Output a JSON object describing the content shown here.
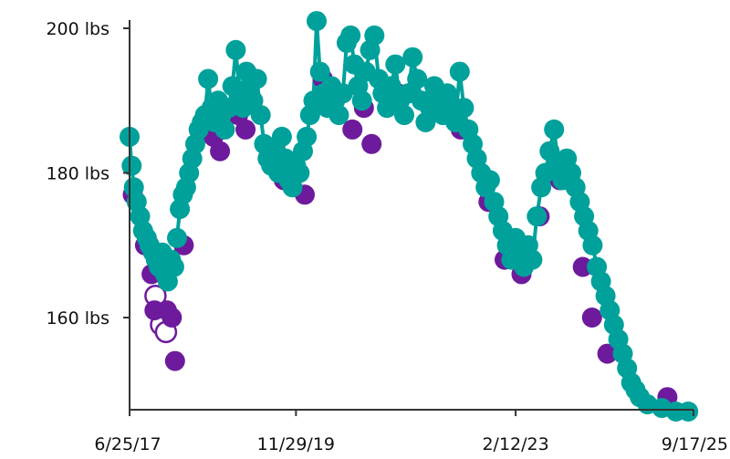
{
  "chart_data": {
    "type": "scatter",
    "title": "",
    "xlabel": "",
    "ylabel": "",
    "x_ticks": [
      "6/25/17",
      "11/29/19",
      "2/12/23",
      "9/17/25"
    ],
    "y_ticks": [
      "160 lbs",
      "180 lbs",
      "200 lbs"
    ],
    "y_tick_values": [
      160,
      180,
      200
    ],
    "x_tick_values": [
      "2017-06-25",
      "2019-11-29",
      "2023-02-12",
      "2025-09-17"
    ],
    "xlim": [
      "2017-06-25",
      "2025-09-17"
    ],
    "ylim": [
      147,
      202
    ],
    "grid": false,
    "colors": {
      "teal": "#00a19b",
      "purple": "#6d1a9c",
      "axis": "#333333"
    },
    "series": [
      {
        "color": "#00a19b",
        "style": "filled",
        "points": [
          [
            "2017-06-25",
            185
          ],
          [
            "2017-07-06",
            181
          ],
          [
            "2017-07-18",
            178
          ],
          [
            "2017-08-02",
            176
          ],
          [
            "2017-08-20",
            174
          ],
          [
            "2017-09-05",
            172
          ],
          [
            "2017-09-25",
            171
          ],
          [
            "2017-10-10",
            170
          ],
          [
            "2017-10-28",
            169
          ],
          [
            "2017-11-12",
            168
          ],
          [
            "2017-11-28",
            167
          ],
          [
            "2017-12-15",
            169
          ],
          [
            "2017-12-30",
            166
          ],
          [
            "2018-01-15",
            165
          ],
          [
            "2018-02-01",
            168
          ],
          [
            "2018-02-18",
            167
          ],
          [
            "2018-03-05",
            171
          ],
          [
            "2018-03-20",
            175
          ],
          [
            "2018-04-05",
            177
          ],
          [
            "2018-04-22",
            178
          ],
          [
            "2018-05-08",
            180
          ],
          [
            "2018-05-25",
            182
          ],
          [
            "2018-06-10",
            184
          ],
          [
            "2018-06-28",
            186
          ],
          [
            "2018-07-15",
            187
          ],
          [
            "2018-08-01",
            188
          ],
          [
            "2018-08-18",
            193
          ],
          [
            "2018-09-05",
            189
          ],
          [
            "2018-09-22",
            187
          ],
          [
            "2018-10-10",
            190
          ],
          [
            "2018-10-28",
            188
          ],
          [
            "2018-11-15",
            186
          ],
          [
            "2018-12-05",
            189
          ],
          [
            "2018-12-25",
            192
          ],
          [
            "2019-01-12",
            197
          ],
          [
            "2019-02-01",
            191
          ],
          [
            "2019-02-20",
            189
          ],
          [
            "2019-03-10",
            194
          ],
          [
            "2019-03-28",
            192
          ],
          [
            "2019-04-15",
            190
          ],
          [
            "2019-05-05",
            193
          ],
          [
            "2019-05-25",
            188
          ],
          [
            "2019-06-12",
            184
          ],
          [
            "2019-07-01",
            182
          ],
          [
            "2019-07-20",
            181
          ],
          [
            "2019-08-08",
            183
          ],
          [
            "2019-08-27",
            180
          ],
          [
            "2019-09-15",
            185
          ],
          [
            "2019-10-04",
            182
          ],
          [
            "2019-10-22",
            179
          ],
          [
            "2019-11-10",
            178
          ],
          [
            "2019-11-29",
            181
          ],
          [
            "2019-12-18",
            180
          ],
          [
            "2020-01-05",
            183
          ],
          [
            "2020-01-25",
            185
          ],
          [
            "2020-02-12",
            188
          ],
          [
            "2020-03-01",
            190
          ],
          [
            "2020-03-18",
            201
          ],
          [
            "2020-04-05",
            194
          ],
          [
            "2020-04-25",
            191
          ],
          [
            "2020-05-15",
            189
          ],
          [
            "2020-06-05",
            192
          ],
          [
            "2020-06-25",
            190
          ],
          [
            "2020-07-15",
            188
          ],
          [
            "2020-08-05",
            191
          ],
          [
            "2020-08-25",
            198
          ],
          [
            "2020-09-15",
            199
          ],
          [
            "2020-10-05",
            195
          ],
          [
            "2020-10-25",
            192
          ],
          [
            "2020-11-15",
            190
          ],
          [
            "2020-12-05",
            194
          ],
          [
            "2020-12-28",
            197
          ],
          [
            "2021-01-20",
            199
          ],
          [
            "2021-02-12",
            193
          ],
          [
            "2021-03-05",
            191
          ],
          [
            "2021-03-28",
            189
          ],
          [
            "2021-04-20",
            192
          ],
          [
            "2021-05-12",
            195
          ],
          [
            "2021-06-05",
            190
          ],
          [
            "2021-06-28",
            188
          ],
          [
            "2021-07-20",
            191
          ],
          [
            "2021-08-12",
            196
          ],
          [
            "2021-09-05",
            193
          ],
          [
            "2021-09-28",
            190
          ],
          [
            "2021-10-20",
            187
          ],
          [
            "2021-11-12",
            189
          ],
          [
            "2021-12-05",
            192
          ],
          [
            "2021-12-28",
            190
          ],
          [
            "2022-01-20",
            188
          ],
          [
            "2022-02-12",
            191
          ],
          [
            "2022-03-05",
            189
          ],
          [
            "2022-03-28",
            187
          ],
          [
            "2022-04-20",
            194
          ],
          [
            "2022-05-12",
            189
          ],
          [
            "2022-06-05",
            186
          ],
          [
            "2022-06-28",
            184
          ],
          [
            "2022-07-20",
            182
          ],
          [
            "2022-08-12",
            180
          ],
          [
            "2022-09-05",
            178
          ],
          [
            "2022-09-28",
            179
          ],
          [
            "2022-10-20",
            176
          ],
          [
            "2022-11-12",
            174
          ],
          [
            "2022-12-05",
            172
          ],
          [
            "2022-12-28",
            170
          ],
          [
            "2023-01-20",
            168
          ],
          [
            "2023-02-12",
            171
          ],
          [
            "2023-03-05",
            169
          ],
          [
            "2023-03-28",
            167
          ],
          [
            "2023-04-20",
            170
          ],
          [
            "2023-05-12",
            168
          ],
          [
            "2023-06-05",
            174
          ],
          [
            "2023-06-28",
            178
          ],
          [
            "2023-07-20",
            180
          ],
          [
            "2023-08-12",
            183
          ],
          [
            "2023-09-05",
            186
          ],
          [
            "2023-09-28",
            181
          ],
          [
            "2023-10-20",
            179
          ],
          [
            "2023-11-12",
            182
          ],
          [
            "2023-12-05",
            180
          ],
          [
            "2023-12-28",
            178
          ],
          [
            "2024-01-20",
            176
          ],
          [
            "2024-02-12",
            174
          ],
          [
            "2024-03-05",
            172
          ],
          [
            "2024-03-28",
            170
          ],
          [
            "2024-04-20",
            167
          ],
          [
            "2024-05-12",
            165
          ],
          [
            "2024-06-05",
            163
          ],
          [
            "2024-06-28",
            161
          ],
          [
            "2024-07-20",
            159
          ],
          [
            "2024-08-12",
            157
          ],
          [
            "2024-09-05",
            155
          ],
          [
            "2024-09-28",
            153
          ],
          [
            "2024-10-20",
            151
          ],
          [
            "2024-11-12",
            150
          ],
          [
            "2024-12-05",
            149
          ],
          [
            "2025-01-15",
            148
          ],
          [
            "2025-04-01",
            147.5
          ],
          [
            "2025-06-15",
            147
          ],
          [
            "2025-08-20",
            147
          ]
        ]
      },
      {
        "color": "#6d1a9c",
        "style": "filled",
        "points": [
          [
            "2017-07-12",
            177
          ],
          [
            "2017-09-15",
            170
          ],
          [
            "2017-10-20",
            166
          ],
          [
            "2017-11-05",
            161
          ],
          [
            "2018-01-10",
            161
          ],
          [
            "2018-02-05",
            160
          ],
          [
            "2018-02-22",
            154
          ],
          [
            "2018-04-10",
            170
          ],
          [
            "2018-09-15",
            185
          ],
          [
            "2018-10-20",
            183
          ],
          [
            "2019-01-25",
            188
          ],
          [
            "2019-03-05",
            186
          ],
          [
            "2019-09-25",
            179
          ],
          [
            "2020-01-15",
            177
          ],
          [
            "2020-04-20",
            193
          ],
          [
            "2020-09-25",
            186
          ],
          [
            "2020-11-25",
            189
          ],
          [
            "2021-01-05",
            184
          ],
          [
            "2021-05-25",
            191
          ],
          [
            "2022-03-25",
            188
          ],
          [
            "2022-04-25",
            186
          ],
          [
            "2022-09-20",
            176
          ],
          [
            "2022-12-15",
            168
          ],
          [
            "2023-03-15",
            166
          ],
          [
            "2023-06-20",
            174
          ],
          [
            "2023-10-05",
            179
          ],
          [
            "2024-02-05",
            167
          ],
          [
            "2024-03-25",
            160
          ],
          [
            "2024-06-15",
            155
          ],
          [
            "2025-05-01",
            149
          ]
        ]
      },
      {
        "color": "#6d1a9c",
        "style": "open",
        "points": [
          [
            "2017-11-10",
            163
          ],
          [
            "2017-12-10",
            159
          ],
          [
            "2018-01-05",
            158
          ]
        ]
      }
    ]
  }
}
